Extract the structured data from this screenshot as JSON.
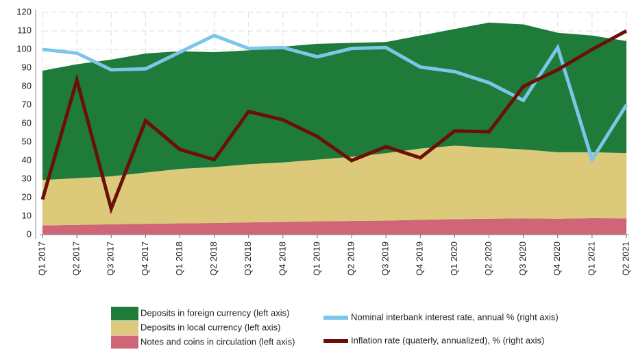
{
  "chart_data": {
    "type": "area",
    "categories": [
      "Q1 2017",
      "Q2 2017",
      "Q3 2017",
      "Q4 2017",
      "Q1 2018",
      "Q2 2018",
      "Q3 2018",
      "Q4 2018",
      "Q1 2019",
      "Q2 2019",
      "Q3 2019",
      "Q4 2019",
      "Q1 2020",
      "Q2 2020",
      "Q3 2020",
      "Q4 2020",
      "Q1 2021",
      "Q2 2021"
    ],
    "series": [
      {
        "name": "Deposits in foreign currency (left axis)",
        "type": "area",
        "color": "#1e7b3a",
        "values": [
          59,
          61.5,
          63,
          64.3,
          63.5,
          62,
          61.5,
          62.5,
          62.5,
          61.5,
          60,
          61,
          63,
          67.5,
          67.5,
          64.5,
          63,
          60.5
        ]
      },
      {
        "name": "Deposits in local currency (left axis)",
        "type": "area",
        "color": "#dcc97a",
        "values": [
          24.5,
          25.2,
          25.9,
          27.6,
          29.4,
          30.2,
          31.4,
          32.1,
          33.3,
          34.6,
          36.4,
          38.5,
          39.6,
          38.4,
          37.2,
          35.9,
          35.6,
          35.2
        ]
      },
      {
        "name": "Notes and coins in circulation (left axis)",
        "type": "area",
        "color": "#cf6678",
        "values": [
          5,
          5.3,
          5.6,
          5.9,
          6.1,
          6.3,
          6.6,
          6.9,
          7.2,
          7.4,
          7.6,
          8,
          8.4,
          8.6,
          8.8,
          8.6,
          8.9,
          8.8
        ]
      },
      {
        "name": "Nominal interbank interest rate, annual % (right axis)",
        "type": "line",
        "color": "#7cc6ea",
        "values": [
          100,
          98,
          89,
          89.5,
          98.5,
          107.5,
          100.5,
          101,
          96,
          100.5,
          101,
          90.5,
          88,
          82,
          72.5,
          101,
          40.5,
          70
        ]
      },
      {
        "name": "Inflation rate (quaterly, annualized), % (right axis)",
        "type": "line",
        "color": "#6b0f07",
        "values": [
          19,
          83.5,
          14,
          61.5,
          46,
          40.5,
          66.5,
          62,
          53,
          40,
          47.5,
          41.5,
          56,
          55.5,
          80,
          89,
          100,
          110
        ]
      }
    ],
    "ylim": [
      0,
      120
    ],
    "yticks": [
      0,
      10,
      20,
      30,
      40,
      50,
      60,
      70,
      80,
      90,
      100,
      110,
      120
    ],
    "grid": true
  }
}
